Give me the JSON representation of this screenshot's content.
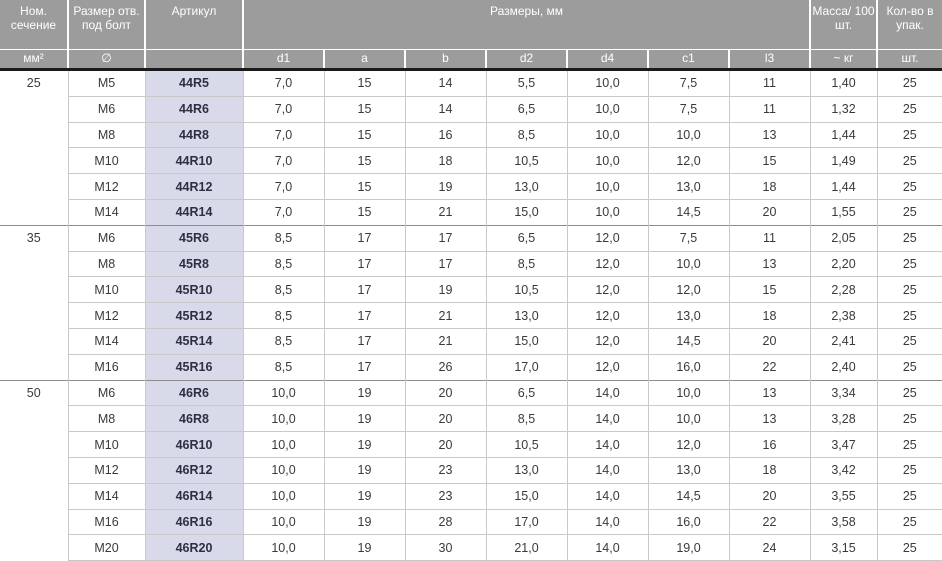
{
  "table": {
    "header": {
      "nominal": {
        "label": "Ном. сечение",
        "unit": "мм²"
      },
      "bolt": {
        "label": "Размер отв. под болт",
        "unit": "∅"
      },
      "article": {
        "label": "Артикул",
        "unit": ""
      },
      "dims": {
        "label": "Размеры, мм",
        "subs": [
          "d1",
          "a",
          "b",
          "d2",
          "d4",
          "c1",
          "l3"
        ]
      },
      "mass": {
        "label": "Масса/ 100 шт.",
        "unit": "~ кг"
      },
      "qty": {
        "label": "Кол-во в упак.",
        "unit": "шт."
      }
    },
    "sections": [
      {
        "section": "25",
        "rows": [
          {
            "size": "M5",
            "article": "44R5",
            "d1": "7,0",
            "a": "15",
            "b": "14",
            "d2": "5,5",
            "d4": "10,0",
            "c1": "7,5",
            "l3": "11",
            "mass": "1,40",
            "qty": "25"
          },
          {
            "size": "M6",
            "article": "44R6",
            "d1": "7,0",
            "a": "15",
            "b": "14",
            "d2": "6,5",
            "d4": "10,0",
            "c1": "7,5",
            "l3": "11",
            "mass": "1,32",
            "qty": "25"
          },
          {
            "size": "M8",
            "article": "44R8",
            "d1": "7,0",
            "a": "15",
            "b": "16",
            "d2": "8,5",
            "d4": "10,0",
            "c1": "10,0",
            "l3": "13",
            "mass": "1,44",
            "qty": "25"
          },
          {
            "size": "M10",
            "article": "44R10",
            "d1": "7,0",
            "a": "15",
            "b": "18",
            "d2": "10,5",
            "d4": "10,0",
            "c1": "12,0",
            "l3": "15",
            "mass": "1,49",
            "qty": "25"
          },
          {
            "size": "M12",
            "article": "44R12",
            "d1": "7,0",
            "a": "15",
            "b": "19",
            "d2": "13,0",
            "d4": "10,0",
            "c1": "13,0",
            "l3": "18",
            "mass": "1,44",
            "qty": "25"
          },
          {
            "size": "M14",
            "article": "44R14",
            "d1": "7,0",
            "a": "15",
            "b": "21",
            "d2": "15,0",
            "d4": "10,0",
            "c1": "14,5",
            "l3": "20",
            "mass": "1,55",
            "qty": "25"
          }
        ]
      },
      {
        "section": "35",
        "rows": [
          {
            "size": "M6",
            "article": "45R6",
            "d1": "8,5",
            "a": "17",
            "b": "17",
            "d2": "6,5",
            "d4": "12,0",
            "c1": "7,5",
            "l3": "11",
            "mass": "2,05",
            "qty": "25"
          },
          {
            "size": "M8",
            "article": "45R8",
            "d1": "8,5",
            "a": "17",
            "b": "17",
            "d2": "8,5",
            "d4": "12,0",
            "c1": "10,0",
            "l3": "13",
            "mass": "2,20",
            "qty": "25"
          },
          {
            "size": "M10",
            "article": "45R10",
            "d1": "8,5",
            "a": "17",
            "b": "19",
            "d2": "10,5",
            "d4": "12,0",
            "c1": "12,0",
            "l3": "15",
            "mass": "2,28",
            "qty": "25"
          },
          {
            "size": "M12",
            "article": "45R12",
            "d1": "8,5",
            "a": "17",
            "b": "21",
            "d2": "13,0",
            "d4": "12,0",
            "c1": "13,0",
            "l3": "18",
            "mass": "2,38",
            "qty": "25"
          },
          {
            "size": "M14",
            "article": "45R14",
            "d1": "8,5",
            "a": "17",
            "b": "21",
            "d2": "15,0",
            "d4": "12,0",
            "c1": "14,5",
            "l3": "20",
            "mass": "2,41",
            "qty": "25"
          },
          {
            "size": "M16",
            "article": "45R16",
            "d1": "8,5",
            "a": "17",
            "b": "26",
            "d2": "17,0",
            "d4": "12,0",
            "c1": "16,0",
            "l3": "22",
            "mass": "2,40",
            "qty": "25"
          }
        ]
      },
      {
        "section": "50",
        "rows": [
          {
            "size": "M6",
            "article": "46R6",
            "d1": "10,0",
            "a": "19",
            "b": "20",
            "d2": "6,5",
            "d4": "14,0",
            "c1": "10,0",
            "l3": "13",
            "mass": "3,34",
            "qty": "25"
          },
          {
            "size": "M8",
            "article": "46R8",
            "d1": "10,0",
            "a": "19",
            "b": "20",
            "d2": "8,5",
            "d4": "14,0",
            "c1": "10,0",
            "l3": "13",
            "mass": "3,28",
            "qty": "25"
          },
          {
            "size": "M10",
            "article": "46R10",
            "d1": "10,0",
            "a": "19",
            "b": "20",
            "d2": "10,5",
            "d4": "14,0",
            "c1": "12,0",
            "l3": "16",
            "mass": "3,47",
            "qty": "25"
          },
          {
            "size": "M12",
            "article": "46R12",
            "d1": "10,0",
            "a": "19",
            "b": "23",
            "d2": "13,0",
            "d4": "14,0",
            "c1": "13,0",
            "l3": "18",
            "mass": "3,42",
            "qty": "25"
          },
          {
            "size": "M14",
            "article": "46R14",
            "d1": "10,0",
            "a": "19",
            "b": "23",
            "d2": "15,0",
            "d4": "14,0",
            "c1": "14,5",
            "l3": "20",
            "mass": "3,55",
            "qty": "25"
          },
          {
            "size": "M16",
            "article": "46R16",
            "d1": "10,0",
            "a": "19",
            "b": "28",
            "d2": "17,0",
            "d4": "14,0",
            "c1": "16,0",
            "l3": "22",
            "mass": "3,58",
            "qty": "25"
          },
          {
            "size": "M20",
            "article": "46R20",
            "d1": "10,0",
            "a": "19",
            "b": "30",
            "d2": "21,0",
            "d4": "14,0",
            "c1": "19,0",
            "l3": "24",
            "mass": "3,15",
            "qty": "25"
          }
        ]
      }
    ]
  },
  "colors": {
    "header_bg": "#9c9c9c",
    "header_text": "#ffffff",
    "article_bg": "#d9dae9",
    "article_text": "#2e2f42",
    "row_border": "#c9c9c9",
    "section_border": "#8c8c8c",
    "heavy_rule": "#1a1a1a"
  }
}
